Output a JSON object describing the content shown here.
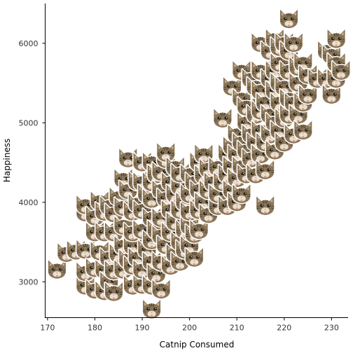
{
  "chart_data": {
    "type": "scatter",
    "title": "",
    "xlabel": "Catnip Consumed",
    "ylabel": "Happiness",
    "xlim": [
      169.5,
      233.5
    ],
    "ylim": [
      2550,
      6500
    ],
    "x_ticks": [
      170,
      180,
      190,
      200,
      210,
      220,
      230
    ],
    "y_ticks": [
      3000,
      4000,
      5000,
      6000
    ],
    "grid": false,
    "marker": "cat-face-icon",
    "colors": {
      "fur": "#8a7558",
      "fur_dark": "#4e3f2c",
      "fur_light": "#c7b596",
      "nose": "#d79a8c",
      "outline": "#ffffff",
      "axis": "#000000",
      "tick_text": "#333333"
    },
    "points": [
      [
        172,
        3150
      ],
      [
        174,
        3360
      ],
      [
        176,
        3390
      ],
      [
        178,
        2950
      ],
      [
        178,
        3120
      ],
      [
        178,
        3400
      ],
      [
        178,
        3870
      ],
      [
        178,
        3960
      ],
      [
        180,
        2900
      ],
      [
        180,
        3170
      ],
      [
        180,
        3620
      ],
      [
        180,
        3820
      ],
      [
        181,
        3380
      ],
      [
        181,
        4010
      ],
      [
        182,
        2880
      ],
      [
        182,
        3150
      ],
      [
        182,
        3620
      ],
      [
        182,
        3880
      ],
      [
        183,
        3000
      ],
      [
        183,
        3300
      ],
      [
        183,
        3950
      ],
      [
        184,
        2870
      ],
      [
        184,
        3140
      ],
      [
        184,
        3620
      ],
      [
        184,
        3860
      ],
      [
        185,
        3350
      ],
      [
        185,
        4060
      ],
      [
        186,
        3150
      ],
      [
        186,
        3450
      ],
      [
        186,
        3700
      ],
      [
        186,
        3940
      ],
      [
        186,
        4290
      ],
      [
        187,
        3280
      ],
      [
        187,
        4150
      ],
      [
        187,
        4550
      ],
      [
        188,
        2950
      ],
      [
        188,
        3200
      ],
      [
        188,
        3450
      ],
      [
        188,
        3620
      ],
      [
        188,
        3880
      ],
      [
        189,
        3300
      ],
      [
        189,
        3980
      ],
      [
        189,
        4260
      ],
      [
        190,
        2960
      ],
      [
        190,
        3150
      ],
      [
        190,
        3650
      ],
      [
        190,
        3900
      ],
      [
        190,
        4250
      ],
      [
        190,
        4500
      ],
      [
        191,
        3400
      ],
      [
        191,
        4100
      ],
      [
        192,
        2650
      ],
      [
        192,
        2950
      ],
      [
        192,
        3250
      ],
      [
        192,
        3520
      ],
      [
        192,
        3800
      ],
      [
        192,
        4040
      ],
      [
        192,
        4250
      ],
      [
        192,
        4500
      ],
      [
        193,
        3100
      ],
      [
        193,
        3650
      ],
      [
        193,
        4350
      ],
      [
        194,
        2900
      ],
      [
        194,
        3250
      ],
      [
        194,
        3580
      ],
      [
        194,
        3800
      ],
      [
        194,
        4150
      ],
      [
        194,
        4380
      ],
      [
        195,
        3460
      ],
      [
        195,
        4050
      ],
      [
        195,
        4540
      ],
      [
        195,
        4620
      ],
      [
        196,
        3200
      ],
      [
        196,
        3620
      ],
      [
        196,
        3900
      ],
      [
        196,
        4250
      ],
      [
        197,
        3350
      ],
      [
        197,
        3750
      ],
      [
        197,
        4100
      ],
      [
        197,
        4440
      ],
      [
        198,
        3250
      ],
      [
        198,
        3500
      ],
      [
        198,
        3900
      ],
      [
        198,
        4200
      ],
      [
        198,
        4360
      ],
      [
        199,
        3400
      ],
      [
        199,
        3650
      ],
      [
        199,
        4000
      ],
      [
        200,
        3450
      ],
      [
        200,
        3700
      ],
      [
        200,
        3880
      ],
      [
        200,
        4100
      ],
      [
        200,
        4350
      ],
      [
        201,
        3300
      ],
      [
        201,
        3600
      ],
      [
        201,
        4250
      ],
      [
        202,
        3650
      ],
      [
        202,
        3900
      ],
      [
        202,
        4150
      ],
      [
        202,
        4500
      ],
      [
        203,
        4000
      ],
      [
        203,
        4340
      ],
      [
        203,
        4600
      ],
      [
        204,
        3850
      ],
      [
        204,
        4150
      ],
      [
        204,
        4420
      ],
      [
        205,
        4250
      ],
      [
        206,
        3950
      ],
      [
        206,
        4100
      ],
      [
        206,
        4440
      ],
      [
        207,
        4250
      ],
      [
        207,
        5050
      ],
      [
        208,
        3950
      ],
      [
        208,
        4350
      ],
      [
        208,
        4600
      ],
      [
        209,
        4150
      ],
      [
        209,
        4450
      ],
      [
        209,
        4700
      ],
      [
        209,
        5450
      ],
      [
        210,
        4000
      ],
      [
        210,
        4300
      ],
      [
        210,
        4600
      ],
      [
        210,
        4850
      ],
      [
        211,
        4100
      ],
      [
        211,
        4450
      ],
      [
        211,
        4750
      ],
      [
        211,
        5300
      ],
      [
        211,
        5650
      ],
      [
        212,
        4350
      ],
      [
        212,
        4650
      ],
      [
        212,
        5000
      ],
      [
        212,
        5200
      ],
      [
        213,
        4550
      ],
      [
        213,
        4850
      ],
      [
        213,
        5550
      ],
      [
        214,
        4350
      ],
      [
        214,
        4750
      ],
      [
        214,
        5100
      ],
      [
        214,
        5450
      ],
      [
        215,
        4600
      ],
      [
        215,
        4900
      ],
      [
        215,
        5150
      ],
      [
        215,
        5400
      ],
      [
        215,
        5650
      ],
      [
        215,
        6000
      ],
      [
        216,
        3950
      ],
      [
        216,
        4400
      ],
      [
        216,
        4750
      ],
      [
        216,
        5250
      ],
      [
        217,
        4850
      ],
      [
        217,
        5100
      ],
      [
        217,
        5550
      ],
      [
        217,
        5900
      ],
      [
        218,
        4650
      ],
      [
        218,
        5000
      ],
      [
        218,
        5400
      ],
      [
        218,
        5650
      ],
      [
        218,
        6050
      ],
      [
        219,
        4900
      ],
      [
        219,
        5250
      ],
      [
        219,
        5500
      ],
      [
        219,
        5750
      ],
      [
        219,
        5950
      ],
      [
        220,
        4750
      ],
      [
        220,
        5050
      ],
      [
        220,
        5450
      ],
      [
        220,
        6000
      ],
      [
        221,
        5100
      ],
      [
        221,
        5300
      ],
      [
        221,
        5650
      ],
      [
        221,
        5900
      ],
      [
        221,
        6300
      ],
      [
        222,
        4850
      ],
      [
        222,
        5250
      ],
      [
        222,
        6000
      ],
      [
        223,
        5100
      ],
      [
        223,
        5500
      ],
      [
        223,
        5700
      ],
      [
        224,
        4900
      ],
      [
        224,
        5250
      ],
      [
        224,
        5750
      ],
      [
        225,
        5350
      ],
      [
        225,
        5600
      ],
      [
        227,
        5550
      ],
      [
        229,
        5550
      ],
      [
        229,
        5900
      ],
      [
        230,
        5350
      ],
      [
        230,
        5850
      ],
      [
        231,
        5550
      ],
      [
        231,
        5750
      ],
      [
        231,
        6050
      ],
      [
        232,
        5650
      ]
    ]
  }
}
